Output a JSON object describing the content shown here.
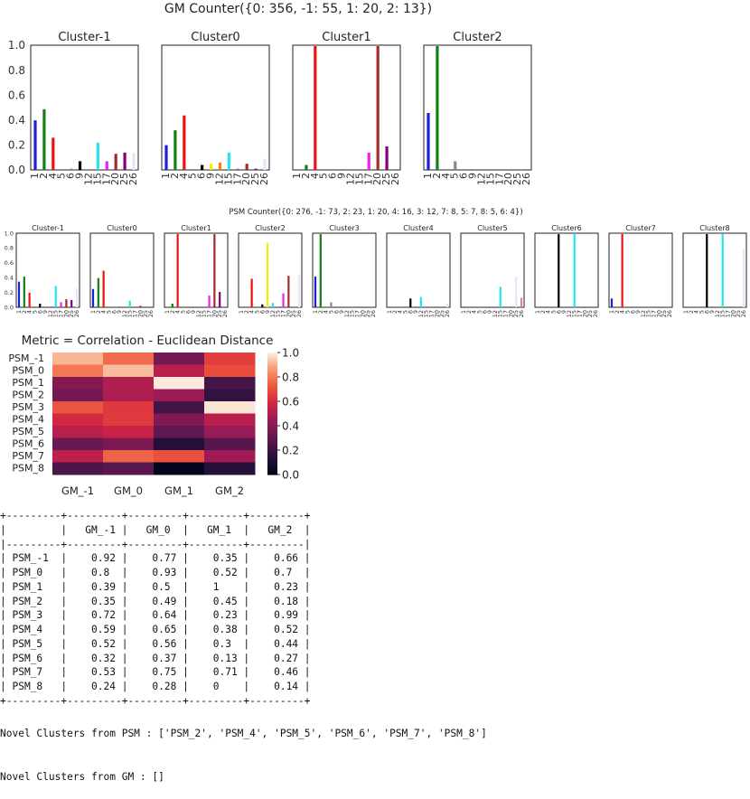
{
  "palette": [
    "#0000cc",
    "#008000",
    "#ff0000",
    "#00bfbf",
    "#bf00bf",
    "#bfbf00",
    "#000000",
    "#ff7f0e",
    "#808080",
    "#00ffff",
    "#ff00ff",
    "#ffff00",
    "#a52a2a",
    "#800080",
    "#d8bfd8",
    "#e6e6fa"
  ],
  "chart_data": [
    {
      "type": "bar",
      "group": "GM",
      "title": "GM Counter({0: 356, -1: 55, 1: 20, 2: 13})",
      "ylim": [
        0,
        1
      ],
      "yticks": [
        "0.0",
        "0.2",
        "0.4",
        "0.6",
        "0.8",
        "1.0"
      ],
      "categories": [
        "1",
        "2",
        "4",
        "5",
        "6",
        "9",
        "12",
        "15",
        "17",
        "20",
        "25",
        "26"
      ],
      "panels": [
        {
          "title": "Cluster-1",
          "bars": [
            {
              "x": 0,
              "v": 0.4,
              "c": "#1f1fd6"
            },
            {
              "x": 1,
              "v": 0.49,
              "c": "#138013"
            },
            {
              "x": 2,
              "v": 0.26,
              "c": "#ee1111"
            },
            {
              "x": 4,
              "v": 0.01,
              "c": "#888888"
            },
            {
              "x": 5,
              "v": 0.07,
              "c": "#000000"
            },
            {
              "x": 7,
              "v": 0.22,
              "c": "#22e6ee"
            },
            {
              "x": 8,
              "v": 0.07,
              "c": "#ee22ee"
            },
            {
              "x": 9,
              "v": 0.13,
              "c": "#a52a2a"
            },
            {
              "x": 10,
              "v": 0.14,
              "c": "#800080"
            },
            {
              "x": 11,
              "v": 0.14,
              "c": "#e6e6fa"
            }
          ]
        },
        {
          "title": "Cluster0",
          "bars": [
            {
              "x": 0,
              "v": 0.2,
              "c": "#1f1fd6"
            },
            {
              "x": 1,
              "v": 0.32,
              "c": "#138013"
            },
            {
              "x": 2,
              "v": 0.44,
              "c": "#ee1111"
            },
            {
              "x": 4,
              "v": 0.04,
              "c": "#000000"
            },
            {
              "x": 5,
              "v": 0.05,
              "c": "#f0f000"
            },
            {
              "x": 6,
              "v": 0.06,
              "c": "#ff7f0e"
            },
            {
              "x": 7,
              "v": 0.14,
              "c": "#22e6ee"
            },
            {
              "x": 8,
              "v": 0.01,
              "c": "#ee22ee"
            },
            {
              "x": 9,
              "v": 0.05,
              "c": "#a52a2a"
            },
            {
              "x": 10,
              "v": 0.01,
              "c": "#800080"
            },
            {
              "x": 11,
              "v": 0.09,
              "c": "#e6e6fa"
            }
          ]
        },
        {
          "title": "Cluster1",
          "bars": [
            {
              "x": 1,
              "v": 0.04,
              "c": "#138013"
            },
            {
              "x": 2,
              "v": 1.0,
              "c": "#ee1111"
            },
            {
              "x": 8,
              "v": 0.14,
              "c": "#ee22ee"
            },
            {
              "x": 9,
              "v": 1.0,
              "c": "#a52a2a"
            },
            {
              "x": 10,
              "v": 0.19,
              "c": "#800080"
            }
          ]
        },
        {
          "title": "Cluster2",
          "bars": [
            {
              "x": 0,
              "v": 0.46,
              "c": "#1f1fd6"
            },
            {
              "x": 1,
              "v": 1.0,
              "c": "#138013"
            },
            {
              "x": 3,
              "v": 0.07,
              "c": "#888888"
            }
          ]
        }
      ]
    },
    {
      "type": "bar",
      "group": "PSM",
      "title": "PSM Counter({0: 276, -1: 73, 2: 23, 1: 20, 4: 16, 3: 12, 7: 8, 5: 7, 8: 5, 6: 4})",
      "ylim": [
        0,
        1
      ],
      "yticks": [
        "0.0",
        "0.2",
        "0.4",
        "0.6",
        "0.8",
        "1.0"
      ],
      "categories": [
        "1",
        "2",
        "4",
        "5",
        "6",
        "9",
        "12",
        "15",
        "17",
        "20",
        "25",
        "26"
      ],
      "panels": [
        {
          "title": "Cluster-1",
          "bars": [
            {
              "x": 0,
              "v": 0.35,
              "c": "#1f1fd6"
            },
            {
              "x": 1,
              "v": 0.42,
              "c": "#138013"
            },
            {
              "x": 2,
              "v": 0.2,
              "c": "#ee1111"
            },
            {
              "x": 4,
              "v": 0.05,
              "c": "#000000"
            },
            {
              "x": 7,
              "v": 0.29,
              "c": "#22e6ee"
            },
            {
              "x": 8,
              "v": 0.07,
              "c": "#ee22ee"
            },
            {
              "x": 9,
              "v": 0.11,
              "c": "#a52a2a"
            },
            {
              "x": 10,
              "v": 0.1,
              "c": "#800080"
            },
            {
              "x": 11,
              "v": 0.26,
              "c": "#e6e6fa"
            }
          ]
        },
        {
          "title": "Cluster0",
          "bars": [
            {
              "x": 0,
              "v": 0.25,
              "c": "#1f1fd6"
            },
            {
              "x": 1,
              "v": 0.4,
              "c": "#138013"
            },
            {
              "x": 2,
              "v": 0.5,
              "c": "#ee1111"
            },
            {
              "x": 7,
              "v": 0.09,
              "c": "#22e6ee"
            },
            {
              "x": 9,
              "v": 0.02,
              "c": "#a52a2a"
            }
          ]
        },
        {
          "title": "Cluster1",
          "bars": [
            {
              "x": 1,
              "v": 0.05,
              "c": "#138013"
            },
            {
              "x": 2,
              "v": 1.0,
              "c": "#ee1111"
            },
            {
              "x": 8,
              "v": 0.16,
              "c": "#ee22ee"
            },
            {
              "x": 9,
              "v": 1.0,
              "c": "#a52a2a"
            },
            {
              "x": 10,
              "v": 0.21,
              "c": "#800080"
            }
          ]
        },
        {
          "title": "Cluster2",
          "bars": [
            {
              "x": 2,
              "v": 0.39,
              "c": "#ee1111"
            },
            {
              "x": 4,
              "v": 0.04,
              "c": "#000000"
            },
            {
              "x": 5,
              "v": 0.88,
              "c": "#f0f000"
            },
            {
              "x": 6,
              "v": 0.06,
              "c": "#22e6ee"
            },
            {
              "x": 8,
              "v": 0.19,
              "c": "#ee22ee"
            },
            {
              "x": 9,
              "v": 0.43,
              "c": "#a52a2a"
            },
            {
              "x": 11,
              "v": 0.44,
              "c": "#e6e6fa"
            }
          ]
        },
        {
          "title": "Cluster3",
          "bars": [
            {
              "x": 0,
              "v": 0.42,
              "c": "#1f1fd6"
            },
            {
              "x": 1,
              "v": 1.0,
              "c": "#138013"
            },
            {
              "x": 3,
              "v": 0.07,
              "c": "#888888"
            }
          ]
        },
        {
          "title": "Cluster4",
          "bars": [
            {
              "x": 4,
              "v": 0.12,
              "c": "#000000"
            },
            {
              "x": 6,
              "v": 0.14,
              "c": "#22e6ee"
            },
            {
              "x": 11,
              "v": 0.05,
              "c": "#e6e6fa"
            }
          ]
        },
        {
          "title": "Cluster5",
          "bars": [
            {
              "x": 7,
              "v": 0.28,
              "c": "#22e6ee"
            },
            {
              "x": 10,
              "v": 0.42,
              "c": "#e6e6fa"
            },
            {
              "x": 11,
              "v": 0.13,
              "c": "#d08a8a"
            }
          ]
        },
        {
          "title": "Cluster6",
          "bars": [
            {
              "x": 4,
              "v": 1.0,
              "c": "#000000"
            },
            {
              "x": 7,
              "v": 1.0,
              "c": "#22e6ee"
            }
          ]
        },
        {
          "title": "Cluster7",
          "bars": [
            {
              "x": 0,
              "v": 0.12,
              "c": "#1f1fd6"
            },
            {
              "x": 2,
              "v": 1.0,
              "c": "#ee1111"
            }
          ]
        },
        {
          "title": "Cluster8",
          "bars": [
            {
              "x": 4,
              "v": 1.0,
              "c": "#000000"
            },
            {
              "x": 7,
              "v": 1.0,
              "c": "#22e6ee"
            },
            {
              "x": 11,
              "v": 0.8,
              "c": "#e6e6fa"
            }
          ]
        }
      ]
    },
    {
      "type": "heatmap",
      "title": "Metric = Correlation - Euclidean Distance",
      "x_labels": [
        "GM_-1",
        "GM_0",
        "GM_1",
        "GM_2"
      ],
      "y_labels": [
        "PSM_-1",
        "PSM_0",
        "PSM_1",
        "PSM_2",
        "PSM_3",
        "PSM_4",
        "PSM_5",
        "PSM_6",
        "PSM_7",
        "PSM_8"
      ],
      "values": [
        [
          0.92,
          0.77,
          0.35,
          0.66
        ],
        [
          0.8,
          0.93,
          0.52,
          0.7
        ],
        [
          0.39,
          0.5,
          1,
          0.23
        ],
        [
          0.35,
          0.49,
          0.45,
          0.18
        ],
        [
          0.72,
          0.64,
          0.23,
          0.99
        ],
        [
          0.59,
          0.65,
          0.38,
          0.52
        ],
        [
          0.52,
          0.56,
          0.3,
          0.44
        ],
        [
          0.32,
          0.37,
          0.13,
          0.27
        ],
        [
          0.53,
          0.75,
          0.71,
          0.46
        ],
        [
          0.24,
          0.28,
          0,
          0.14
        ]
      ],
      "colorbar_ticks": [
        "0.0",
        "0.2",
        "0.4",
        "0.6",
        "0.8",
        "1.0"
      ],
      "colorbar_range": [
        0,
        1
      ]
    }
  ],
  "table_text": "+---------+---------+---------+---------+---------+\n|         |   GM_-1 |   GM_0  |   GM_1  |   GM_2  |\n|---------+---------+---------+---------+---------|\n| PSM_-1  |    0.92 |    0.77 |    0.35 |    0.66 |\n| PSM_0   |    0.8  |    0.93 |    0.52 |    0.7  |\n| PSM_1   |    0.39 |    0.5  |    1    |    0.23 |\n| PSM_2   |    0.35 |    0.49 |    0.45 |    0.18 |\n| PSM_3   |    0.72 |    0.64 |    0.23 |    0.99 |\n| PSM_4   |    0.59 |    0.65 |    0.38 |    0.52 |\n| PSM_5   |    0.52 |    0.56 |    0.3  |    0.44 |\n| PSM_6   |    0.32 |    0.37 |    0.13 |    0.27 |\n| PSM_7   |    0.53 |    0.75 |    0.71 |    0.46 |\n| PSM_8   |    0.24 |    0.28 |    0    |    0.14 |\n+---------+---------+---------+---------+---------+",
  "novel": {
    "psm": "Novel Clusters from PSM : ['PSM_2', 'PSM_4', 'PSM_5', 'PSM_6', 'PSM_7', 'PSM_8']",
    "gm": "Novel Clusters from GM : []"
  }
}
